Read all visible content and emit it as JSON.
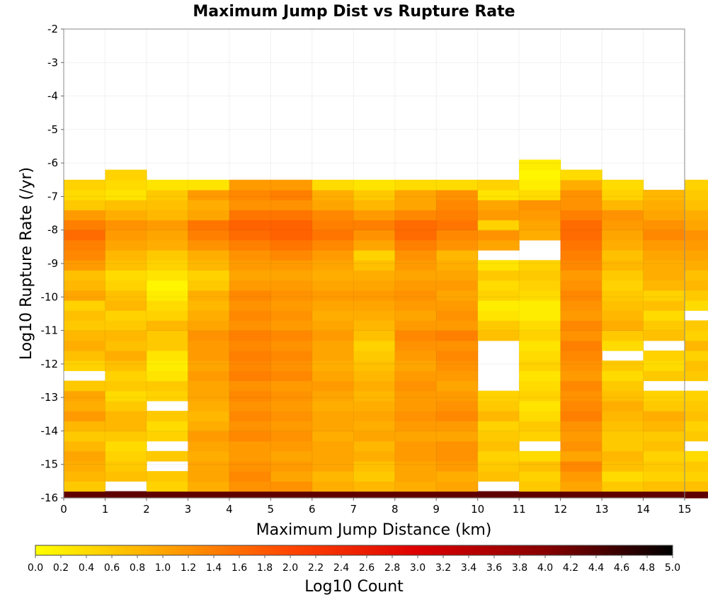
{
  "chart_data": {
    "type": "heatmap",
    "title": "Maximum Jump Dist vs Rupture Rate",
    "xlabel": "Maximum Jump Distance (km)",
    "ylabel": "Log10 Rupture Rate (/yr)",
    "xlim": [
      0,
      15
    ],
    "ylim": [
      -16,
      -2
    ],
    "x_ticks": [
      "0",
      "1",
      "2",
      "3",
      "4",
      "5",
      "6",
      "7",
      "8",
      "9",
      "10",
      "11",
      "12",
      "13",
      "14",
      "15"
    ],
    "y_ticks": [
      "-2",
      "-3",
      "-4",
      "-5",
      "-6",
      "-7",
      "-8",
      "-9",
      "-10",
      "-11",
      "-12",
      "-13",
      "-14",
      "-15",
      "-16"
    ],
    "x_bin_width": 1,
    "y_bin_width": 0.3,
    "y_bin_bottom": -16.1,
    "colorbar": {
      "label": "Log10 Count",
      "min": 0.0,
      "max": 5.0,
      "tick_labels": [
        "0.0",
        "0.2",
        "0.4",
        "0.6",
        "0.8",
        "1.0",
        "1.2",
        "1.4",
        "1.6",
        "1.8",
        "2.0",
        "2.2",
        "2.4",
        "2.6",
        "2.8",
        "3.0",
        "3.2",
        "3.4",
        "3.6",
        "3.8",
        "4.0",
        "4.2",
        "4.4",
        "4.6",
        "4.8",
        "5.0"
      ],
      "colors": [
        "#ffff00",
        "#ffa500",
        "#ff4500",
        "#dd0000",
        "#880000",
        "#000000"
      ]
    },
    "columns_note": "values: Log10 Count per column (x bin), from rate bin y=-16.1..-15.8 upward; null = empty bin",
    "values": [
      [
        4.3,
        0.6,
        0.8,
        0.9,
        1.0,
        0.8,
        0.6,
        0.8,
        1.1,
        0.9,
        1.0,
        0.6,
        null,
        0.5,
        0.7,
        0.9,
        0.8,
        0.6,
        0.7,
        0.5,
        1.0,
        0.8,
        0.7,
        1.1,
        1.3,
        1.4,
        1.6,
        1.4,
        1.1,
        0.6,
        0.4,
        0.5
      ],
      [
        4.3,
        null,
        0.7,
        0.6,
        0.5,
        0.4,
        0.6,
        0.8,
        0.8,
        0.6,
        0.4,
        0.6,
        0.5,
        0.7,
        0.9,
        0.7,
        0.8,
        0.6,
        0.5,
        0.8,
        0.7,
        0.5,
        0.4,
        0.7,
        0.8,
        1.0,
        1.1,
        1.2,
        0.9,
        0.7,
        0.3,
        0.4,
        0.5,
        null,
        null,
        null,
        null,
        null,
        null,
        null,
        null,
        null,
        null,
        null,
        null,
        null,
        null
      ],
      [
        4.3,
        0.5,
        0.6,
        null,
        0.6,
        null,
        0.5,
        0.4,
        0.6,
        null,
        0.5,
        0.6,
        0.3,
        0.2,
        0.3,
        0.6,
        0.6,
        0.8,
        0.5,
        0.4,
        0.2,
        0.1,
        0.3,
        0.5,
        0.6,
        0.9,
        1.0,
        1.1,
        0.8,
        0.7,
        0.6,
        0.3
      ],
      [
        4.3,
        0.9,
        1.0,
        1.0,
        0.9,
        1.0,
        1.1,
        0.9,
        0.8,
        0.9,
        1.0,
        1.0,
        1.1,
        1.0,
        1.1,
        1.1,
        1.2,
        1.0,
        0.9,
        0.8,
        0.9,
        0.6,
        0.5,
        0.8,
        0.9,
        1.2,
        1.4,
        1.5,
        1.0,
        0.9,
        1.1,
        0.3
      ],
      [
        4.3,
        1.2,
        1.3,
        1.2,
        1.1,
        1.1,
        1.3,
        1.2,
        1.3,
        1.2,
        1.3,
        1.2,
        1.4,
        1.3,
        1.4,
        1.3,
        1.4,
        1.2,
        1.3,
        1.2,
        1.3,
        1.1,
        1.0,
        1.1,
        1.2,
        1.4,
        1.6,
        1.7,
        1.5,
        1.2,
        1.3,
        1.1
      ],
      [
        4.3,
        1.2,
        1.0,
        1.1,
        1.0,
        1.1,
        1.2,
        1.1,
        1.2,
        1.1,
        1.2,
        1.1,
        1.3,
        1.2,
        1.3,
        1.2,
        1.3,
        1.1,
        1.2,
        1.1,
        1.2,
        1.1,
        1.0,
        1.1,
        1.3,
        1.5,
        1.7,
        1.7,
        1.5,
        1.2,
        1.4,
        1.1
      ],
      [
        4.3,
        0.9,
        0.8,
        1.0,
        1.0,
        1.0,
        0.9,
        1.0,
        1.0,
        0.9,
        1.0,
        1.1,
        1.0,
        0.9,
        1.0,
        1.0,
        1.1,
        1.0,
        0.9,
        1.0,
        1.1,
        1.0,
        0.9,
        1.0,
        1.1,
        1.3,
        1.5,
        1.4,
        1.3,
        1.0,
        0.9,
        0.4
      ],
      [
        4.3,
        0.8,
        0.6,
        0.7,
        0.9,
        0.8,
        1.0,
        0.9,
        1.0,
        0.9,
        0.8,
        0.9,
        0.8,
        0.7,
        0.6,
        0.5,
        0.7,
        0.8,
        0.9,
        1.0,
        1.1,
        1.0,
        0.9,
        0.7,
        0.5,
        1.0,
        1.2,
        1.4,
        1.1,
        0.8,
        0.6,
        0.3
      ],
      [
        4.3,
        0.9,
        1.0,
        1.0,
        1.1,
        1.1,
        1.0,
        1.1,
        1.2,
        1.1,
        1.1,
        1.2,
        1.1,
        1.0,
        1.1,
        1.2,
        1.3,
        1.1,
        1.0,
        1.1,
        1.2,
        1.1,
        1.0,
        1.1,
        1.2,
        1.4,
        1.6,
        1.6,
        1.3,
        1.0,
        1.0,
        0.4
      ],
      [
        4.3,
        1.0,
        0.9,
        1.1,
        1.2,
        1.2,
        1.0,
        1.1,
        1.3,
        1.2,
        1.1,
        1.0,
        1.1,
        1.2,
        1.3,
        1.2,
        1.4,
        1.1,
        1.2,
        1.1,
        1.0,
        1.1,
        1.0,
        0.9,
        0.8,
        1.2,
        1.3,
        1.5,
        1.4,
        1.3,
        1.2,
        0.4
      ],
      [
        4.3,
        null,
        0.7,
        0.6,
        0.5,
        0.7,
        0.6,
        0.5,
        0.8,
        0.6,
        0.5,
        null,
        null,
        null,
        null,
        null,
        0.7,
        0.6,
        0.3,
        0.2,
        0.5,
        0.4,
        0.6,
        0.3,
        null,
        1.0,
        1.2,
        0.5,
        1.1,
        1.0,
        0.3,
        0.5
      ],
      [
        4.3,
        0.6,
        0.5,
        0.7,
        0.4,
        null,
        0.5,
        0.6,
        0.4,
        0.3,
        0.5,
        0.4,
        0.3,
        0.5,
        0.4,
        0.3,
        0.5,
        0.4,
        0.2,
        0.2,
        0.4,
        0.5,
        0.6,
        0.5,
        null,
        null,
        0.9,
        1.0,
        1.1,
        1.2,
        0.4,
        0.2,
        0.1,
        0.2,
        null,
        null,
        null,
        null,
        null
      ],
      [
        4.3,
        1.0,
        1.1,
        1.3,
        1.0,
        1.2,
        1.1,
        1.2,
        1.4,
        1.3,
        1.2,
        1.3,
        1.1,
        1.2,
        1.3,
        1.4,
        1.2,
        1.3,
        1.1,
        1.2,
        1.3,
        1.2,
        1.1,
        1.3,
        1.4,
        1.5,
        1.6,
        1.6,
        1.4,
        1.2,
        1.2,
        0.9,
        0.4
      ],
      [
        4.3,
        0.6,
        0.4,
        0.7,
        0.8,
        0.6,
        0.6,
        0.7,
        0.8,
        0.9,
        0.7,
        0.6,
        0.4,
        0.6,
        null,
        0.4,
        0.6,
        0.9,
        0.8,
        0.7,
        0.6,
        0.5,
        0.6,
        0.8,
        0.7,
        0.9,
        1.0,
        1.1,
        1.2,
        0.8,
        0.5,
        0.4
      ],
      [
        4.3,
        0.7,
        0.5,
        0.6,
        0.5,
        0.7,
        0.6,
        0.8,
        0.9,
        0.6,
        0.5,
        null,
        0.6,
        0.4,
        0.5,
        null,
        0.7,
        0.6,
        0.4,
        0.7,
        0.5,
        0.8,
        0.9,
        0.9,
        1.0,
        1.1,
        1.3,
        1.2,
        1.0,
        0.9,
        0.8,
        null
      ],
      [
        4.3,
        0.7,
        0.5,
        0.6,
        0.4,
        null,
        0.6,
        0.5,
        0.7,
        0.6,
        0.5,
        null,
        0.6,
        0.7,
        0.5,
        0.8,
        0.5,
        0.6,
        null,
        0.4,
        0.6,
        0.8,
        0.7,
        0.9,
        1.0,
        1.1,
        1.2,
        1.0,
        0.9,
        0.7,
        0.6,
        0.5
      ]
    ]
  }
}
